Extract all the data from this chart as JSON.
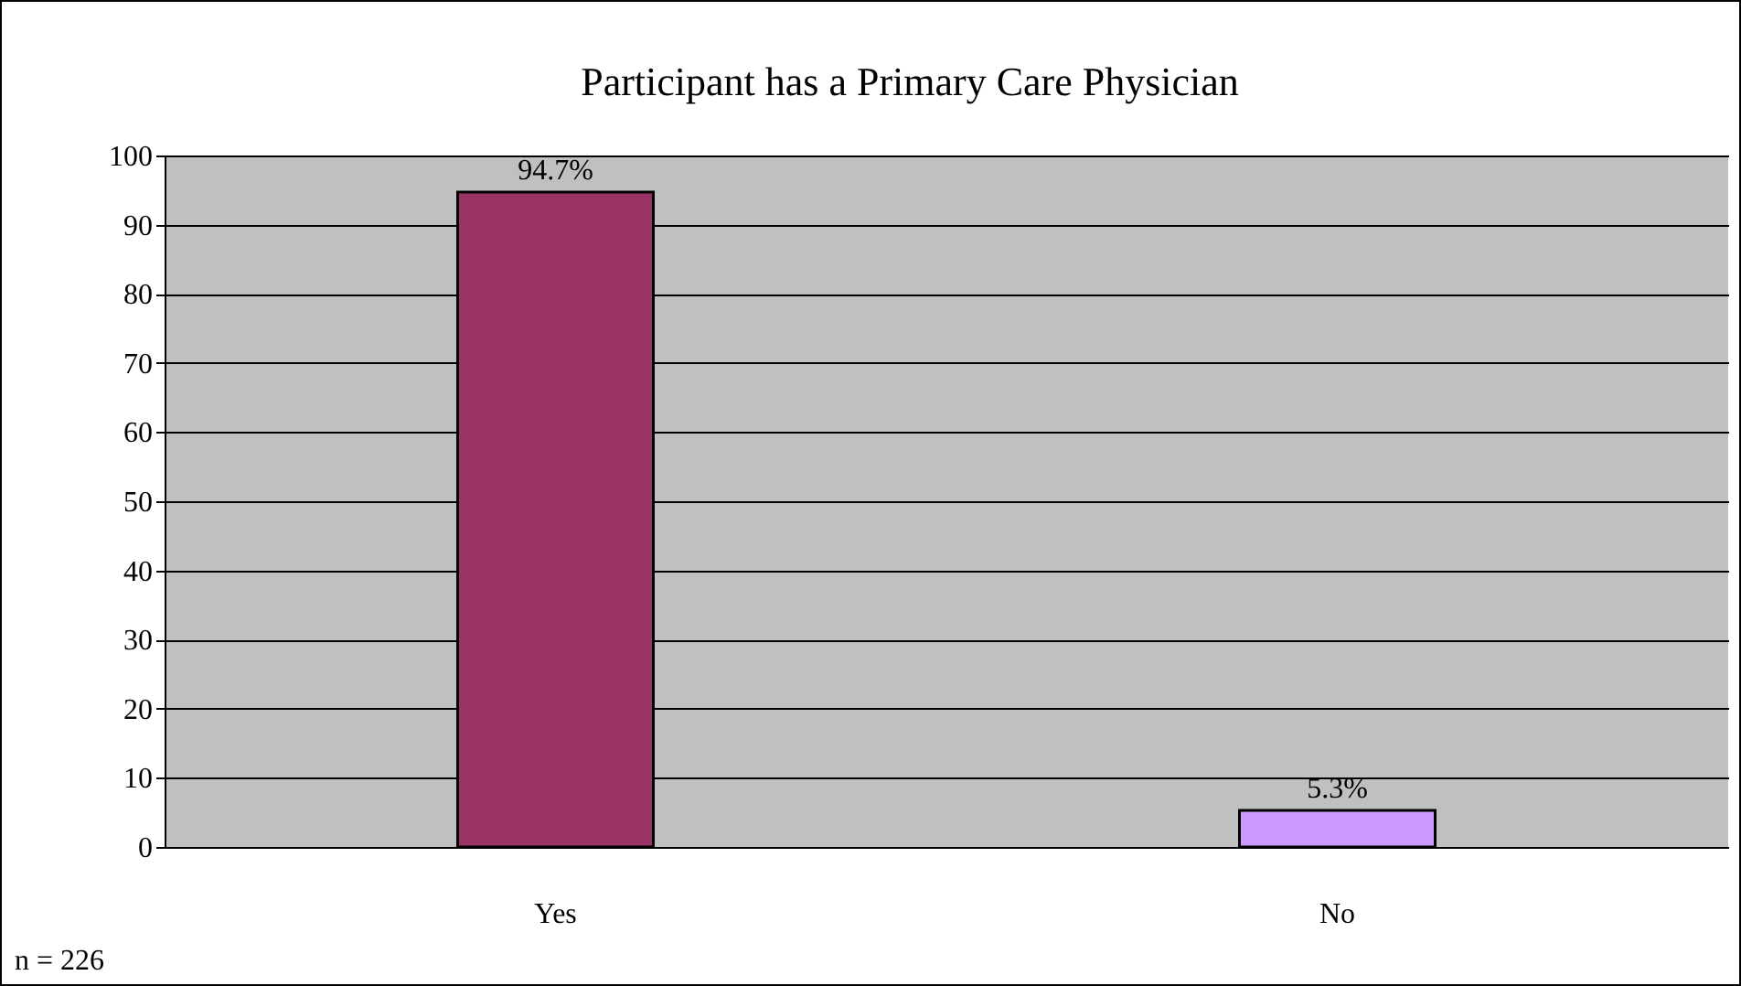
{
  "chart_data": {
    "type": "bar",
    "title": "Participant has a Primary Care Physician",
    "categories": [
      "Yes",
      "No"
    ],
    "values": [
      94.7,
      5.3
    ],
    "colors": [
      "#993366",
      "#cc99ff"
    ],
    "value_labels": [
      "94.7%",
      "5.3%"
    ],
    "ylim": [
      0,
      100
    ],
    "yticks": [
      0,
      10,
      20,
      30,
      40,
      50,
      60,
      70,
      80,
      90,
      100
    ],
    "grid": "y",
    "annotations": [
      "n = 226"
    ]
  }
}
